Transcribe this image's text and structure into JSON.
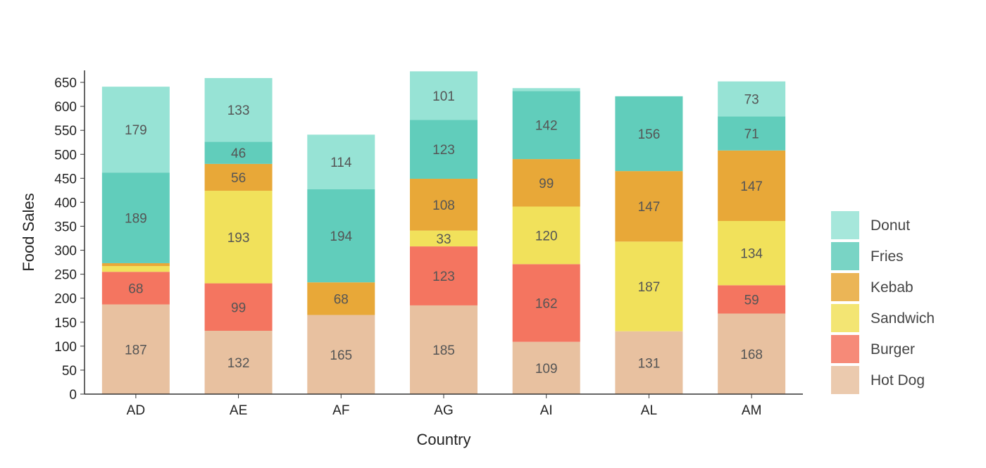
{
  "chart_data": {
    "type": "bar",
    "stacked": true,
    "xlabel": "Country",
    "ylabel": "Food Sales",
    "categories": [
      "AD",
      "AE",
      "AF",
      "AG",
      "AI",
      "AL",
      "AM"
    ],
    "ylim": [
      0,
      675
    ],
    "yticks": [
      0,
      50,
      100,
      150,
      200,
      250,
      300,
      350,
      400,
      450,
      500,
      550,
      600,
      650
    ],
    "grid": false,
    "legend_position": "right",
    "series": [
      {
        "name": "Hot Dog",
        "color": "#E8C1A0",
        "values": [
          187,
          132,
          165,
          185,
          109,
          131,
          168
        ]
      },
      {
        "name": "Burger",
        "color": "#F47560",
        "values": [
          68,
          99,
          0,
          123,
          162,
          0,
          59
        ]
      },
      {
        "name": "Sandwich",
        "color": "#F1E15B",
        "values": [
          12,
          193,
          0,
          33,
          120,
          187,
          134
        ]
      },
      {
        "name": "Kebab",
        "color": "#E8A838",
        "values": [
          6,
          56,
          68,
          108,
          99,
          147,
          147
        ]
      },
      {
        "name": "Fries",
        "color": "#61CDBB",
        "values": [
          189,
          46,
          194,
          123,
          142,
          156,
          71
        ]
      },
      {
        "name": "Donut",
        "color": "#97E3D5",
        "values": [
          179,
          133,
          114,
          101,
          6,
          0,
          73
        ]
      }
    ],
    "label_min_value": 20
  }
}
